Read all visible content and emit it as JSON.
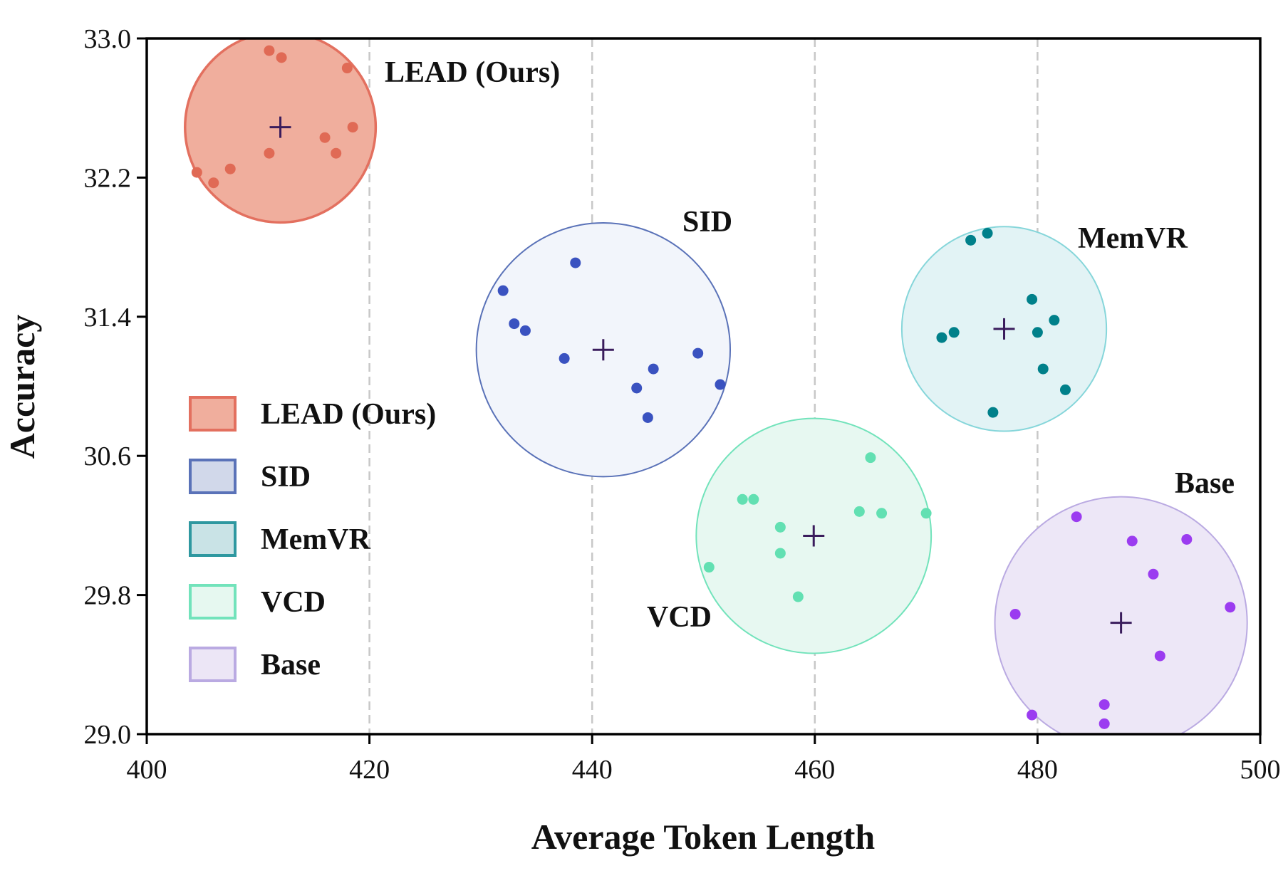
{
  "chart_data": {
    "type": "scatter",
    "title": "",
    "xlabel": "Average Token Length",
    "ylabel": "Accuracy",
    "xlim": [
      400,
      500
    ],
    "ylim": [
      29.0,
      33.0
    ],
    "xticks": [
      "400",
      "420",
      "440",
      "460",
      "480",
      "500"
    ],
    "yticks": [
      "29.0",
      "29.8",
      "30.6",
      "31.4",
      "32.2",
      "33.0"
    ],
    "grid": "vertical dashed at 420, 440, 460, 480",
    "legend_position": "middle-left",
    "series": [
      {
        "name": "LEAD (Ours)",
        "label": "LEAD (Ours)",
        "fill": "#f0ae9d",
        "stroke": "#e3705f",
        "dot": "#e06a55",
        "center": [
          412.0,
          32.49
        ],
        "radius_x_units": 8.56,
        "points": [
          [
            411.0,
            32.93
          ],
          [
            412.1,
            32.89
          ],
          [
            418.0,
            32.83
          ],
          [
            418.5,
            32.49
          ],
          [
            416.0,
            32.43
          ],
          [
            411.0,
            32.34
          ],
          [
            417.0,
            32.34
          ],
          [
            407.5,
            32.25
          ],
          [
            404.5,
            32.23
          ],
          [
            406.0,
            32.17
          ]
        ]
      },
      {
        "name": "SID",
        "label": "SID",
        "fill": "#f2f5fb",
        "stroke": "#5a72b8",
        "dot": "#3a52c0",
        "swatch": "#d1d8ea",
        "center": [
          441.0,
          31.21
        ],
        "radius_x_units": 11.4,
        "points": [
          [
            438.5,
            31.71
          ],
          [
            432.0,
            31.55
          ],
          [
            433.0,
            31.36
          ],
          [
            434.0,
            31.32
          ],
          [
            437.5,
            31.16
          ],
          [
            449.5,
            31.19
          ],
          [
            445.5,
            31.1
          ],
          [
            451.5,
            31.01
          ],
          [
            444.0,
            30.99
          ],
          [
            445.0,
            30.82
          ]
        ]
      },
      {
        "name": "MemVR",
        "label": "MemVR",
        "fill": "#e2f3f5",
        "stroke": "#86d6da",
        "dot": "#00808a",
        "swatch": "#c9e3e6",
        "swatch_border": "#2e98a0",
        "center": [
          477.0,
          31.33
        ],
        "radius_x_units": 9.19,
        "points": [
          [
            474.0,
            31.84
          ],
          [
            475.5,
            31.88
          ],
          [
            479.5,
            31.5
          ],
          [
            481.5,
            31.38
          ],
          [
            471.4,
            31.28
          ],
          [
            472.5,
            31.31
          ],
          [
            480.0,
            31.31
          ],
          [
            480.5,
            31.1
          ],
          [
            482.5,
            30.98
          ],
          [
            476.0,
            30.85
          ]
        ]
      },
      {
        "name": "VCD",
        "label": "VCD",
        "fill": "#e7f8f1",
        "stroke": "#72e3bb",
        "dot": "#62e0b2",
        "swatch": "#e6f8f0",
        "center": [
          459.9,
          30.14
        ],
        "radius_x_units": 10.55,
        "points": [
          [
            465.0,
            30.59
          ],
          [
            453.5,
            30.35
          ],
          [
            454.5,
            30.35
          ],
          [
            464.0,
            30.28
          ],
          [
            466.0,
            30.27
          ],
          [
            470.0,
            30.27
          ],
          [
            456.9,
            30.19
          ],
          [
            456.9,
            30.04
          ],
          [
            450.5,
            29.96
          ],
          [
            458.5,
            29.79
          ]
        ]
      },
      {
        "name": "Base",
        "label": "Base",
        "fill": "#ede7f7",
        "stroke": "#baaae2",
        "dot": "#9b3cf0",
        "swatch": "#ece6f6",
        "center": [
          487.5,
          29.64
        ],
        "radius_x_units": 11.33,
        "points": [
          [
            483.5,
            30.25
          ],
          [
            488.5,
            30.11
          ],
          [
            493.4,
            30.12
          ],
          [
            490.4,
            29.92
          ],
          [
            478.0,
            29.69
          ],
          [
            497.3,
            29.73
          ],
          [
            491.0,
            29.45
          ],
          [
            486.0,
            29.17
          ],
          [
            479.5,
            29.11
          ],
          [
            486.0,
            29.06
          ]
        ]
      }
    ]
  }
}
